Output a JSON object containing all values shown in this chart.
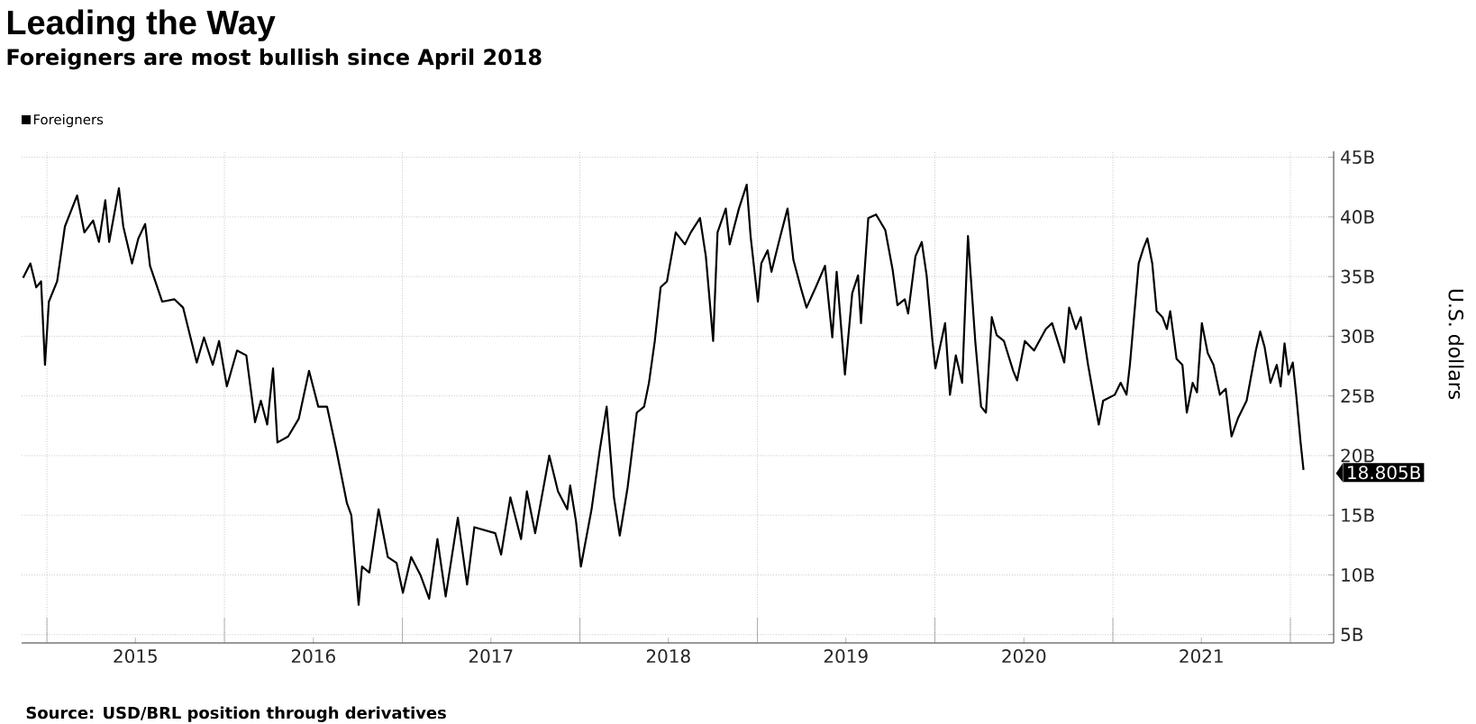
{
  "chart_data": {
    "type": "line",
    "title": "Leading the Way",
    "subtitle": "Foreigners are most bullish since April 2018",
    "ylabel": "U.S. dollars",
    "legend": "top left",
    "grid": true,
    "xlim": [
      "2014-11-10",
      "2022-03-31"
    ],
    "ylim": [
      4.3,
      45.5
    ],
    "xticks": [
      {
        "value": "2015-01-01",
        "label": null
      },
      {
        "value": "2015-07-02",
        "label": "2015"
      },
      {
        "value": "2016-01-01",
        "label": null
      },
      {
        "value": "2016-07-02",
        "label": "2016"
      },
      {
        "value": "2017-01-01",
        "label": null
      },
      {
        "value": "2017-07-02",
        "label": "2017"
      },
      {
        "value": "2018-01-01",
        "label": null
      },
      {
        "value": "2018-07-02",
        "label": "2018"
      },
      {
        "value": "2019-01-01",
        "label": null
      },
      {
        "value": "2019-07-02",
        "label": "2019"
      },
      {
        "value": "2020-01-01",
        "label": null
      },
      {
        "value": "2020-07-02",
        "label": "2020"
      },
      {
        "value": "2021-01-01",
        "label": null
      },
      {
        "value": "2021-07-02",
        "label": "2021"
      },
      {
        "value": "2022-01-01",
        "label": null
      }
    ],
    "yticks": [
      {
        "value": 5,
        "label": "5B"
      },
      {
        "value": 10,
        "label": "10B"
      },
      {
        "value": 15,
        "label": "15B"
      },
      {
        "value": 20,
        "label": "20B"
      },
      {
        "value": 25,
        "label": "25B"
      },
      {
        "value": 30,
        "label": "30B"
      },
      {
        "value": 35,
        "label": "35B"
      },
      {
        "value": 40,
        "label": "40B"
      },
      {
        "value": 45,
        "label": "45B"
      }
    ],
    "annotations": [
      "Source: USD/BRL position through derivatives",
      {
        "text": "18.805B",
        "x": "2022-01-28",
        "y": 18.805
      }
    ],
    "series": [
      {
        "name": "Foreigners",
        "color": "#000000",
        "x": [
          "2014-11-13",
          "2014-11-28",
          "2014-12-10",
          "2014-12-20",
          "2014-12-28",
          "2015-01-05",
          "2015-01-22",
          "2015-02-07",
          "2015-03-04",
          "2015-03-19",
          "2015-04-06",
          "2015-04-18",
          "2015-05-01",
          "2015-05-09",
          "2015-05-29",
          "2015-06-07",
          "2015-06-25",
          "2015-07-08",
          "2015-07-22",
          "2015-08-01",
          "2015-08-26",
          "2015-09-20",
          "2015-10-08",
          "2015-11-05",
          "2015-11-20",
          "2015-12-08",
          "2015-12-21",
          "2016-01-06",
          "2016-01-27",
          "2016-02-15",
          "2016-03-04",
          "2016-03-16",
          "2016-03-29",
          "2016-04-10",
          "2016-04-19",
          "2016-05-11",
          "2016-06-02",
          "2016-06-23",
          "2016-07-12",
          "2016-07-30",
          "2016-08-18",
          "2016-09-09",
          "2016-09-18",
          "2016-10-03",
          "2016-10-10",
          "2016-10-25",
          "2016-11-13",
          "2016-12-02",
          "2016-12-20",
          "2017-01-02",
          "2017-01-19",
          "2017-02-07",
          "2017-02-25",
          "2017-03-14",
          "2017-03-31",
          "2017-04-25",
          "2017-05-14",
          "2017-05-29",
          "2017-07-11",
          "2017-07-23",
          "2017-08-11",
          "2017-09-02",
          "2017-09-14",
          "2017-10-01",
          "2017-10-30",
          "2017-11-17",
          "2017-12-06",
          "2017-12-12",
          "2017-12-24",
          "2018-01-03",
          "2018-01-25",
          "2018-02-11",
          "2018-02-25",
          "2018-03-12",
          "2018-03-24",
          "2018-04-09",
          "2018-04-28",
          "2018-05-13",
          "2018-05-23",
          "2018-06-04",
          "2018-06-16",
          "2018-06-29",
          "2018-07-17",
          "2018-08-05",
          "2018-08-17",
          "2018-09-05",
          "2018-09-17",
          "2018-10-02",
          "2018-10-11",
          "2018-10-28",
          "2018-11-05",
          "2018-11-24",
          "2018-12-10",
          "2018-12-18",
          "2019-01-02",
          "2019-01-09",
          "2019-01-22",
          "2019-01-30",
          "2019-02-16",
          "2019-03-04",
          "2019-03-16",
          "2019-03-31",
          "2019-04-12",
          "2019-05-01",
          "2019-05-20",
          "2019-06-04",
          "2019-06-13",
          "2019-06-30",
          "2019-07-15",
          "2019-07-27",
          "2019-08-02",
          "2019-08-17",
          "2019-09-02",
          "2019-09-21",
          "2019-10-06",
          "2019-10-16",
          "2019-10-31",
          "2019-11-07",
          "2019-11-22",
          "2019-12-05",
          "2019-12-15",
          "2019-12-27",
          "2020-01-02",
          "2020-01-22",
          "2020-02-01",
          "2020-02-13",
          "2020-02-26",
          "2020-03-09",
          "2020-03-24",
          "2020-04-05",
          "2020-04-15",
          "2020-04-27",
          "2020-05-07",
          "2020-05-22",
          "2020-06-10",
          "2020-06-18",
          "2020-07-04",
          "2020-07-23",
          "2020-08-16",
          "2020-08-29",
          "2020-09-23",
          "2020-10-03",
          "2020-10-17",
          "2020-10-27",
          "2020-11-11",
          "2020-11-24",
          "2020-12-03",
          "2020-12-12",
          "2021-01-05",
          "2021-01-17",
          "2021-01-29",
          "2021-02-05",
          "2021-02-11",
          "2021-02-23",
          "2021-03-05",
          "2021-03-13",
          "2021-03-23",
          "2021-04-01",
          "2021-04-13",
          "2021-04-22",
          "2021-04-29",
          "2021-05-12",
          "2021-05-24",
          "2021-06-02",
          "2021-06-14",
          "2021-06-23",
          "2021-07-03",
          "2021-07-15",
          "2021-07-27",
          "2021-08-09",
          "2021-08-21",
          "2021-09-02",
          "2021-09-15",
          "2021-10-03",
          "2021-10-22",
          "2021-10-31",
          "2021-11-09",
          "2021-11-21",
          "2021-12-04",
          "2021-12-12",
          "2021-12-20",
          "2021-12-28",
          "2022-01-06",
          "2022-01-13",
          "2022-01-22",
          "2022-01-28"
        ],
        "values": [
          34.9,
          36.1,
          34.1,
          34.6,
          27.6,
          32.9,
          34.6,
          39.2,
          41.8,
          38.7,
          39.7,
          37.9,
          41.4,
          37.9,
          42.4,
          39.2,
          36.1,
          38.2,
          39.4,
          35.9,
          32.9,
          33.1,
          32.4,
          27.8,
          29.9,
          27.6,
          29.6,
          25.8,
          28.8,
          28.4,
          22.8,
          24.6,
          22.6,
          27.3,
          21.1,
          21.6,
          23.1,
          27.1,
          24.1,
          24.1,
          20.5,
          16.0,
          15.0,
          7.5,
          10.7,
          10.2,
          15.5,
          11.5,
          11.0,
          8.5,
          11.5,
          10.0,
          8.0,
          13.0,
          8.2,
          14.8,
          9.2,
          14.0,
          13.5,
          11.7,
          16.5,
          13.0,
          17.0,
          13.5,
          20.0,
          17.0,
          15.5,
          17.5,
          14.5,
          10.7,
          15.5,
          20.5,
          24.1,
          16.5,
          13.3,
          17.3,
          23.6,
          24.1,
          26.1,
          29.6,
          34.1,
          34.6,
          38.7,
          37.7,
          38.7,
          39.9,
          36.7,
          29.6,
          38.7,
          40.7,
          37.7,
          40.7,
          42.7,
          38.4,
          32.9,
          36.1,
          37.2,
          35.4,
          38.2,
          40.7,
          36.4,
          34.1,
          32.4,
          34.1,
          35.9,
          29.9,
          35.4,
          26.8,
          33.6,
          35.1,
          31.1,
          39.9,
          40.2,
          38.9,
          35.6,
          32.6,
          33.1,
          31.9,
          36.7,
          37.9,
          35.1,
          29.6,
          27.3,
          31.1,
          25.1,
          28.4,
          26.1,
          38.4,
          29.6,
          24.1,
          23.6,
          31.6,
          30.1,
          29.6,
          27.1,
          26.3,
          29.6,
          28.8,
          30.6,
          31.1,
          27.8,
          32.4,
          30.6,
          31.6,
          27.6,
          24.6,
          22.6,
          24.6,
          25.1,
          26.1,
          25.1,
          27.6,
          30.4,
          36.1,
          37.4,
          38.2,
          36.1,
          32.1,
          31.6,
          30.6,
          32.1,
          28.1,
          27.6,
          23.6,
          26.1,
          25.3,
          31.1,
          28.6,
          27.6,
          25.1,
          25.6,
          21.6,
          23.1,
          24.6,
          28.8,
          30.4,
          29.1,
          26.1,
          27.6,
          25.8,
          29.4,
          26.8,
          27.8,
          25.1,
          21.1,
          18.805
        ]
      }
    ]
  }
}
